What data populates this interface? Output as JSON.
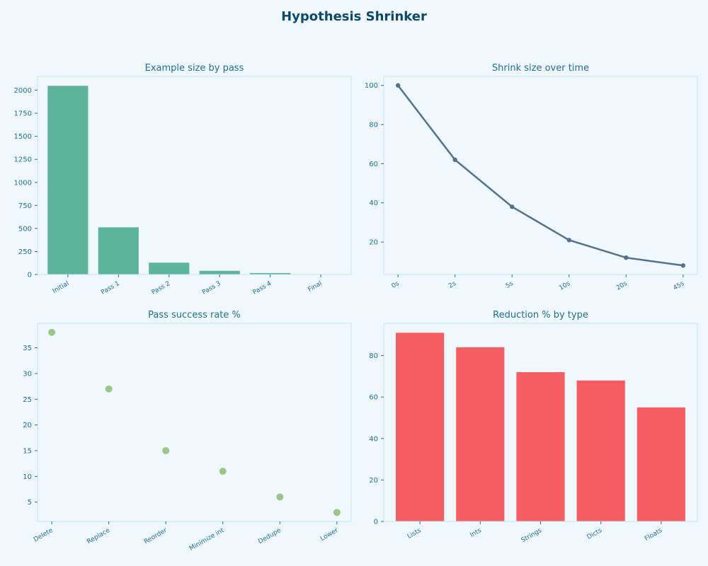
{
  "figure": {
    "title": "Hypothesis Shrinker",
    "background": "#f0f8fe",
    "axes_edge": "#bfe6f5",
    "text_color": "#1a6f9a"
  },
  "chart_data": [
    {
      "type": "bar",
      "title": "Example size by pass",
      "categories": [
        "Initial",
        "Pass 1",
        "Pass 2",
        "Pass 3",
        "Pass 4",
        "Final"
      ],
      "values": [
        2048,
        512,
        128,
        40,
        16,
        2
      ],
      "yticks": [
        0,
        250,
        500,
        750,
        1000,
        1250,
        1500,
        1750,
        2000
      ],
      "ylim": [
        0,
        2150
      ],
      "color": "#5cb59b",
      "xlabel": "",
      "ylabel": "",
      "grid": false
    },
    {
      "type": "line",
      "title": "Shrink size over time",
      "categories": [
        "0s",
        "2s",
        "5s",
        "10s",
        "20s",
        "45s"
      ],
      "values": [
        100,
        62,
        38,
        21,
        12,
        8
      ],
      "yticks": [
        20,
        40,
        60,
        80,
        100
      ],
      "ylim": [
        3.4,
        104.6
      ],
      "color": "#52738f",
      "xlabel": "",
      "ylabel": "",
      "grid": false
    },
    {
      "type": "scatter",
      "title": "Pass success rate %",
      "categories": [
        "Delete",
        "Replace",
        "Reorder",
        "Minimize int",
        "Dedupe",
        "Lower"
      ],
      "values": [
        38,
        27,
        15,
        11,
        6,
        3
      ],
      "yticks": [
        5,
        10,
        15,
        20,
        25,
        30,
        35
      ],
      "ylim": [
        1.25,
        39.75
      ],
      "color": "#95c47f",
      "xlabel": "",
      "ylabel": "",
      "grid": false
    },
    {
      "type": "bar",
      "title": "Reduction % by type",
      "categories": [
        "Lists",
        "Ints",
        "Strings",
        "Dicts",
        "Floats"
      ],
      "values": [
        91,
        84,
        72,
        68,
        55
      ],
      "yticks": [
        0,
        20,
        40,
        60,
        80
      ],
      "ylim": [
        0,
        95.55
      ],
      "color": "#f55d62",
      "xlabel": "",
      "ylabel": "",
      "grid": false
    }
  ]
}
